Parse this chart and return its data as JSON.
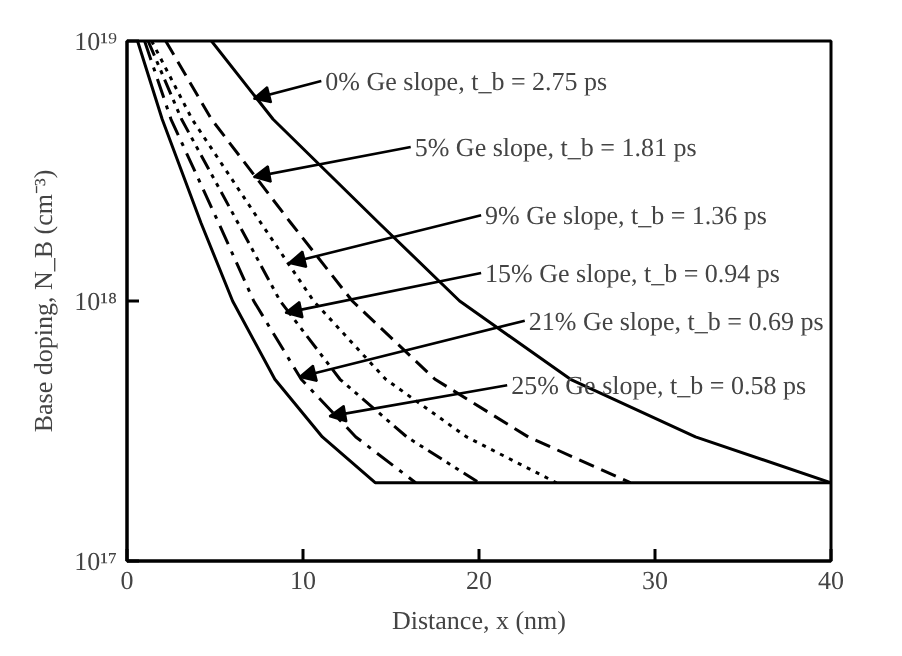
{
  "chart_data": {
    "type": "line",
    "xlabel": "Distance, x (nm)",
    "ylabel": "Base doping, N_B (cm⁻³)",
    "log": "y",
    "xlim": [
      0,
      40
    ],
    "ylim": [
      1e+17,
      1e+19
    ],
    "xticks": [
      0,
      10,
      20,
      30,
      40
    ],
    "yticks": [
      {
        "value": 1e+17,
        "label": "10¹⁷"
      },
      {
        "value": 1e+18,
        "label": "10¹⁸"
      },
      {
        "value": 1e+19,
        "label": "10¹⁹"
      }
    ],
    "grid": false,
    "series": [
      {
        "color": "#000000",
        "line_style": "solid",
        "x": [
          4.8,
          8.3,
          14.3,
          18.9,
          25.2,
          32.3,
          40
        ],
        "values": [
          1e+19,
          5e+18,
          2e+18,
          1e+18,
          5e+17,
          3e+17,
          2e+17
        ]
      },
      {
        "color": "#000000",
        "line_style": "dashed",
        "x": [
          2.2,
          4.8,
          9.3,
          12.8,
          17.5,
          22.8,
          28.6
        ],
        "values": [
          1e+19,
          5e+18,
          2e+18,
          1e+18,
          5e+17,
          3e+17,
          2e+17
        ]
      },
      {
        "color": "#000000",
        "line_style": "dotted",
        "x": [
          1.4,
          3.7,
          7.6,
          10.6,
          14.7,
          19.3,
          24.4
        ],
        "values": [
          1e+19,
          5e+18,
          2e+18,
          1e+18,
          5e+17,
          3e+17,
          2e+17
        ]
      },
      {
        "color": "#000000",
        "line_style": "dashdotdot",
        "x": [
          1.2,
          3.1,
          6.3,
          8.7,
          12.1,
          15.9,
          20
        ],
        "values": [
          1e+19,
          5e+18,
          2e+18,
          1e+18,
          5e+17,
          3e+17,
          2e+17
        ]
      },
      {
        "color": "#000000",
        "line_style": "dashdot",
        "x": [
          1.0,
          2.5,
          5.2,
          7.2,
          9.9,
          13.0,
          16.4
        ],
        "values": [
          1e+19,
          5e+18,
          2e+18,
          1e+18,
          5e+17,
          3e+17,
          2e+17
        ]
      },
      {
        "color": "#000000",
        "line_style": "solid",
        "x": [
          0.6,
          2.0,
          4.2,
          6.0,
          8.4,
          11.1,
          14.1,
          40
        ],
        "values": [
          1e+19,
          5e+18,
          2e+18,
          1e+18,
          5e+17,
          3e+17,
          2e+17,
          2e+17
        ]
      }
    ],
    "annotations": [
      {
        "text": "0% Ge slope, t_b = 2.75 ps",
        "x": 7.2,
        "y": 6e+18
      },
      {
        "text": "5% Ge slope, t_b = 1.81 ps",
        "x": 7.2,
        "y": 3e+18
      },
      {
        "text": "9% Ge slope, t_b = 1.36 ps",
        "x": 9.2,
        "y": 1.4e+18
      },
      {
        "text": "15% Ge slope, t_b = 0.94 ps",
        "x": 9.0,
        "y": 9e+17
      },
      {
        "text": "21% Ge slope, t_b = 0.69 ps",
        "x": 9.8,
        "y": 5.1e+17
      },
      {
        "text": "25% Ge slope, t_b = 0.58 ps",
        "x": 11.5,
        "y": 3.6e+17
      }
    ]
  }
}
